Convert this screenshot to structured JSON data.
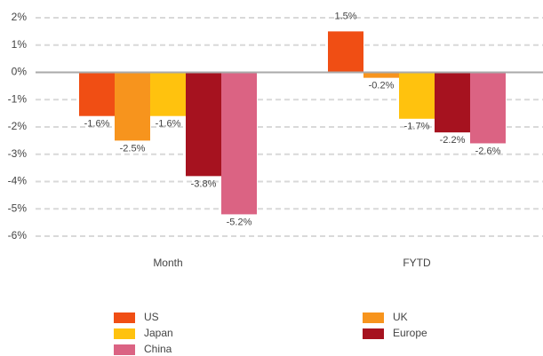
{
  "chart_data": {
    "type": "bar",
    "categories": [
      "Month",
      "FYTD"
    ],
    "series": [
      {
        "name": "US",
        "color": "#f04e14",
        "values": [
          -1.6,
          1.5
        ],
        "value_labels": [
          "-1.6%",
          "1.5%"
        ]
      },
      {
        "name": "UK",
        "color": "#f7941d",
        "values": [
          -2.5,
          -0.2
        ],
        "value_labels": [
          "-2.5%",
          "-0.2%"
        ]
      },
      {
        "name": "Japan",
        "color": "#ffc20e",
        "values": [
          -1.6,
          -1.7
        ],
        "value_labels": [
          "-1.6%",
          "-1.7%"
        ]
      },
      {
        "name": "Europe",
        "color": "#a6121f",
        "values": [
          -3.8,
          -2.2
        ],
        "value_labels": [
          "-3.8%",
          "-2.2%"
        ]
      },
      {
        "name": "China",
        "color": "#db6383",
        "values": [
          -5.2,
          -2.6
        ],
        "value_labels": [
          "-5.2%",
          "-2.6%"
        ]
      }
    ],
    "ylim": [
      -6,
      2
    ],
    "yticks": [
      {
        "value": 2,
        "label": "2%"
      },
      {
        "value": 1,
        "label": "1%"
      },
      {
        "value": 0,
        "label": "0%"
      },
      {
        "value": -1,
        "label": "-1%"
      },
      {
        "value": -2,
        "label": "-2%"
      },
      {
        "value": -3,
        "label": "-3%"
      },
      {
        "value": -4,
        "label": "-4%"
      },
      {
        "value": -5,
        "label": "-5%"
      },
      {
        "value": -6,
        "label": "-6%"
      }
    ],
    "grid": true
  }
}
